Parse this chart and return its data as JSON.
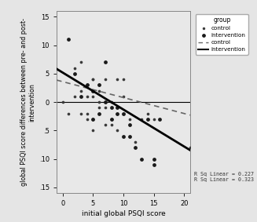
{
  "title": "",
  "xlabel": "initial global PSQI score",
  "ylabel": "global PSQI score differences between pre- and post-\nintervention",
  "xlim": [
    -1,
    21
  ],
  "ylim": [
    -16,
    16
  ],
  "xticks": [
    0,
    5,
    10,
    15,
    20
  ],
  "yticks": [
    -15,
    -10,
    -5,
    0,
    5,
    10,
    15
  ],
  "ytick_labels": [
    ".15",
    ".10",
    ".5",
    "0",
    "5",
    "10",
    "15"
  ],
  "bg_color": "#e5e5e5",
  "plot_bg_color": "#e8e8e8",
  "annotation": "R Sq Linear = 0.227\nR Sq Linear = 0.323",
  "control_scatter": [
    [
      0,
      0
    ],
    [
      1,
      -2
    ],
    [
      2,
      6
    ],
    [
      2,
      1
    ],
    [
      3,
      7
    ],
    [
      3,
      2
    ],
    [
      3,
      -2
    ],
    [
      4,
      1
    ],
    [
      4,
      -2
    ],
    [
      4,
      -3
    ],
    [
      4,
      3
    ],
    [
      5,
      4
    ],
    [
      5,
      1
    ],
    [
      5,
      -3
    ],
    [
      5,
      -5
    ],
    [
      5,
      4
    ],
    [
      6,
      0
    ],
    [
      6,
      2
    ],
    [
      6,
      -1
    ],
    [
      6,
      3
    ],
    [
      7,
      4
    ],
    [
      7,
      -1
    ],
    [
      7,
      -4
    ],
    [
      7,
      0
    ],
    [
      8,
      0
    ],
    [
      8,
      -4
    ],
    [
      8,
      -3
    ],
    [
      9,
      -2
    ],
    [
      9,
      4
    ],
    [
      9,
      -1
    ],
    [
      9,
      -5
    ],
    [
      10,
      4
    ],
    [
      10,
      -2
    ],
    [
      10,
      1
    ],
    [
      11,
      -3
    ],
    [
      12,
      -7
    ],
    [
      13,
      -3
    ],
    [
      14,
      -2
    ],
    [
      15,
      -3
    ],
    [
      21,
      -8
    ]
  ],
  "intervention_scatter": [
    [
      1,
      11
    ],
    [
      2,
      5
    ],
    [
      3,
      1
    ],
    [
      4,
      3
    ],
    [
      5,
      2
    ],
    [
      5,
      -3
    ],
    [
      6,
      3
    ],
    [
      6,
      -2
    ],
    [
      7,
      7
    ],
    [
      7,
      0
    ],
    [
      8,
      -1
    ],
    [
      8,
      -3
    ],
    [
      9,
      -1
    ],
    [
      9,
      -2
    ],
    [
      10,
      -2
    ],
    [
      10,
      -6
    ],
    [
      11,
      -6
    ],
    [
      11,
      -4
    ],
    [
      12,
      -8
    ],
    [
      13,
      -10
    ],
    [
      14,
      -3
    ],
    [
      15,
      -10
    ],
    [
      15,
      -11
    ],
    [
      16,
      -3
    ]
  ],
  "control_line": {
    "slope": -0.28,
    "intercept": 3.6
  },
  "intervention_line": {
    "slope": -0.65,
    "intercept": 5.2
  },
  "legend_title": "group"
}
